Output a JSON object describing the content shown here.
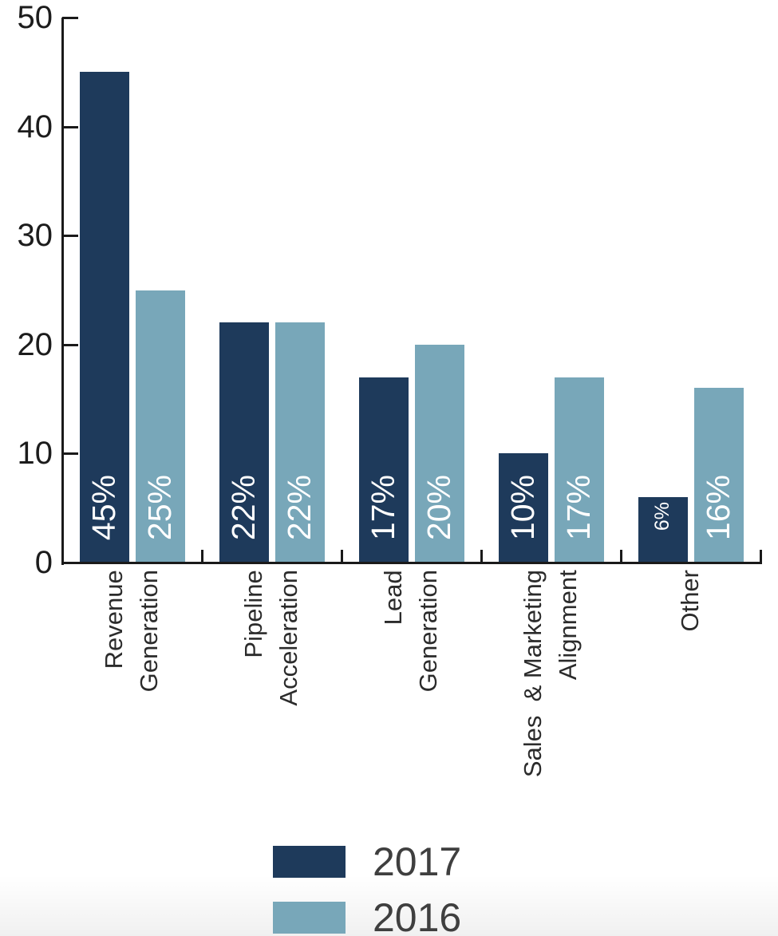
{
  "chart_data": {
    "type": "bar",
    "title": "",
    "xlabel": "",
    "ylabel": "",
    "categories": [
      "Revenue Generation",
      "Pipeline Acceleration",
      "Lead Generation",
      "Sales & Marketing Alignment",
      "Other"
    ],
    "category_label_lines": [
      [
        "Revenue",
        "Generation"
      ],
      [
        "Pipeline",
        "Acceleration"
      ],
      [
        "Lead",
        "Generation"
      ],
      [
        "Sales  & Marketing",
        "Alignment"
      ],
      [
        "Other"
      ]
    ],
    "series": [
      {
        "name": "2017",
        "color": "#1e3a5b",
        "values": [
          45,
          22,
          17,
          10,
          6
        ],
        "bar_labels": [
          "45%",
          "22%",
          "17%",
          "10%",
          "6%"
        ]
      },
      {
        "name": "2016",
        "color": "#78a7b9",
        "values": [
          25,
          22,
          20,
          17,
          16
        ],
        "bar_labels": [
          "25%",
          "22%",
          "20%",
          "17%",
          "16%"
        ]
      }
    ],
    "ylim": [
      0,
      50
    ],
    "yticks": [
      0,
      10,
      20,
      30,
      40,
      50
    ],
    "grid": false,
    "tick_direction": "inside",
    "legend": {
      "position": "bottom-center",
      "entries": [
        "2017",
        "2016"
      ]
    },
    "bar_label_color": "#ffffff",
    "axis_color": "#1a1a1a",
    "category_text_color": "#2b2b2b",
    "legend_text_color": "#3f3f3f"
  }
}
